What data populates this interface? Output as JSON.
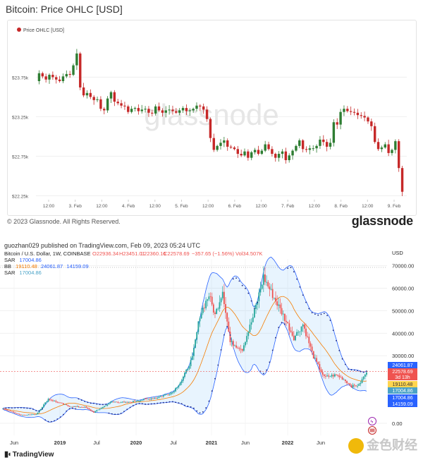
{
  "top_panel": {
    "title": "Bitcoin: Price OHLC [USD]",
    "legend_label": "Price OHLC [USD]",
    "watermark": "glassnode",
    "copyright": "© 2023 Glassnode. All Rights Reserved.",
    "brand": "glassnode",
    "colors": {
      "up": "#2e7d32",
      "down": "#c62828",
      "grid": "#efefef"
    }
  },
  "bottom_panel": {
    "published": "guozhan029 published on TradingView.com, Feb 09, 2023 05:24 UTC",
    "symbol": "Bitcoin / U.S. Dollar, 1W, COINBASE",
    "ohlc": {
      "o": "O22936.34",
      "h": "H23451.01",
      "l": "L22360.16",
      "c": "C22578.69",
      "chg": "−357.65 (−1.56%)",
      "vol": "Vol34.507K"
    },
    "indicators": [
      {
        "name": "SAR",
        "values": [
          "17004.86"
        ]
      },
      {
        "name": "BB",
        "values": [
          "19110.48",
          "24061.87",
          "14159.09"
        ]
      },
      {
        "name": "SAR",
        "values": [
          "17004.86"
        ]
      }
    ],
    "currency": "USD",
    "logo": "TradingView",
    "corner_watermark": "金色财经",
    "price_tags": [
      {
        "text": "24061.87",
        "color": "#2962ff"
      },
      {
        "text": "22578.69",
        "color": "#ef5350"
      },
      {
        "text": "3d 13h",
        "color": "#ef5350"
      },
      {
        "text": "19110.48",
        "color": "#f57c00"
      },
      {
        "text": "17004.86",
        "color": "#4aa3c7"
      },
      {
        "text": "17004.86",
        "color": "#2962ff"
      },
      {
        "text": "14159.09",
        "color": "#2962ff"
      }
    ]
  },
  "chart_data": [
    {
      "type": "candlestick",
      "title": "Bitcoin: Price OHLC [USD]",
      "series_name": "Price OHLC [USD]",
      "x_tick_labels": [
        "12:00",
        "3. Feb",
        "12:00",
        "4. Feb",
        "12:00",
        "5. Feb",
        "12:00",
        "6. Feb",
        "12:00",
        "7. Feb",
        "12:00",
        "8. Feb",
        "12:00",
        "9. Feb"
      ],
      "y_tick_labels": [
        "$23.75k",
        "$23.25k",
        "$22.75k",
        "$22.25k"
      ],
      "ylim": [
        22200,
        24200
      ],
      "grid": true,
      "closes": [
        23800,
        23760,
        23720,
        23780,
        23750,
        23720,
        23700,
        23760,
        23790,
        23780,
        23900,
        24050,
        23620,
        23520,
        23550,
        23500,
        23460,
        23470,
        23350,
        23330,
        23480,
        23560,
        23440,
        23420,
        23390,
        23380,
        23310,
        23350,
        23360,
        23320,
        23340,
        23350,
        23300,
        23290,
        23380,
        23330,
        23300,
        23330,
        23340,
        23320,
        23300,
        23330,
        23360,
        23320,
        23330,
        23350,
        23390,
        23380,
        23340,
        23220,
        22980,
        22830,
        22880,
        22920,
        22950,
        22870,
        22860,
        22840,
        22780,
        22760,
        22810,
        22730,
        22800,
        22830,
        22780,
        22820,
        22900,
        22840,
        22780,
        22730,
        22780,
        22810,
        22700,
        22760,
        22820,
        22880,
        22950,
        22840,
        22830,
        22850,
        22850,
        22880,
        22960,
        22930,
        22870,
        22920,
        23180,
        23150,
        23310,
        23350,
        23320,
        23310,
        23300,
        23270,
        23260,
        23240,
        23190,
        23130,
        22930,
        22840,
        22860,
        22900,
        22790,
        22830,
        22940,
        22600,
        22300
      ]
    },
    {
      "type": "candlestick",
      "title": "Bitcoin / U.S. Dollar, 1W, COINBASE",
      "x_tick_labels": [
        "Jun",
        "2019",
        "Jul",
        "2020",
        "Jul",
        "2021",
        "Jun",
        "2022",
        "Jun"
      ],
      "y_tick_labels": [
        "70000.00",
        "60000.00",
        "50000.00",
        "40000.00",
        "30000.00",
        "0.00"
      ],
      "ylim": [
        0,
        73000
      ],
      "path": [
        [
          0,
          6500
        ],
        [
          12,
          3700
        ],
        [
          22,
          4000
        ],
        [
          30,
          10800
        ],
        [
          44,
          7500
        ],
        [
          54,
          7200
        ],
        [
          60,
          4900
        ],
        [
          72,
          9600
        ],
        [
          82,
          9200
        ],
        [
          92,
          10500
        ],
        [
          102,
          11400
        ],
        [
          112,
          13800
        ],
        [
          118,
          19000
        ],
        [
          125,
          29000
        ],
        [
          130,
          48000
        ],
        [
          136,
          57000
        ],
        [
          140,
          48000
        ],
        [
          145,
          59000
        ],
        [
          150,
          36000
        ],
        [
          158,
          33000
        ],
        [
          165,
          47000
        ],
        [
          172,
          65000
        ],
        [
          178,
          57000
        ],
        [
          185,
          48000
        ],
        [
          192,
          38000
        ],
        [
          198,
          44000
        ],
        [
          205,
          29500
        ],
        [
          212,
          20500
        ],
        [
          220,
          21500
        ],
        [
          225,
          19500
        ],
        [
          230,
          16500
        ],
        [
          235,
          17000
        ],
        [
          240,
          22900
        ]
      ],
      "series": [
        {
          "name": "BB",
          "values": [
            19110.48,
            24061.87,
            14159.09
          ]
        },
        {
          "name": "SAR",
          "values": [
            17004.86
          ]
        }
      ],
      "last_close": 22578.69
    }
  ]
}
